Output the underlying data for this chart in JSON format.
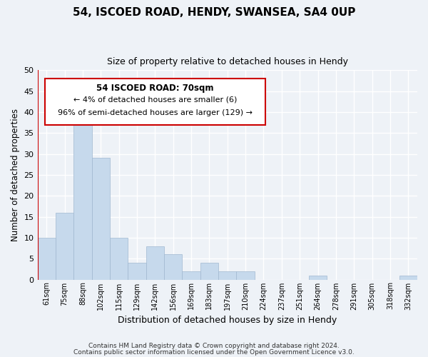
{
  "title": "54, ISCOED ROAD, HENDY, SWANSEA, SA4 0UP",
  "subtitle": "Size of property relative to detached houses in Hendy",
  "xlabel": "Distribution of detached houses by size in Hendy",
  "ylabel": "Number of detached properties",
  "bin_labels": [
    "61sqm",
    "75sqm",
    "88sqm",
    "102sqm",
    "115sqm",
    "129sqm",
    "142sqm",
    "156sqm",
    "169sqm",
    "183sqm",
    "197sqm",
    "210sqm",
    "224sqm",
    "237sqm",
    "251sqm",
    "264sqm",
    "278sqm",
    "291sqm",
    "305sqm",
    "318sqm",
    "332sqm"
  ],
  "bar_heights": [
    10,
    16,
    39,
    29,
    10,
    4,
    8,
    6,
    2,
    4,
    2,
    2,
    0,
    0,
    0,
    1,
    0,
    0,
    0,
    0,
    1
  ],
  "bar_color": "#c6d9ec",
  "bar_edge_color": "#a0b8d0",
  "marker_line_color": "#cc0000",
  "ylim": [
    0,
    50
  ],
  "yticks": [
    0,
    5,
    10,
    15,
    20,
    25,
    30,
    35,
    40,
    45,
    50
  ],
  "annotation_title": "54 ISCOED ROAD: 70sqm",
  "annotation_line1": "← 4% of detached houses are smaller (6)",
  "annotation_line2": "96% of semi-detached houses are larger (129) →",
  "annotation_box_color": "#ffffff",
  "annotation_box_edge": "#cc0000",
  "footer1": "Contains HM Land Registry data © Crown copyright and database right 2024.",
  "footer2": "Contains public sector information licensed under the Open Government Licence v3.0.",
  "background_color": "#eef2f7",
  "grid_color": "#ffffff"
}
